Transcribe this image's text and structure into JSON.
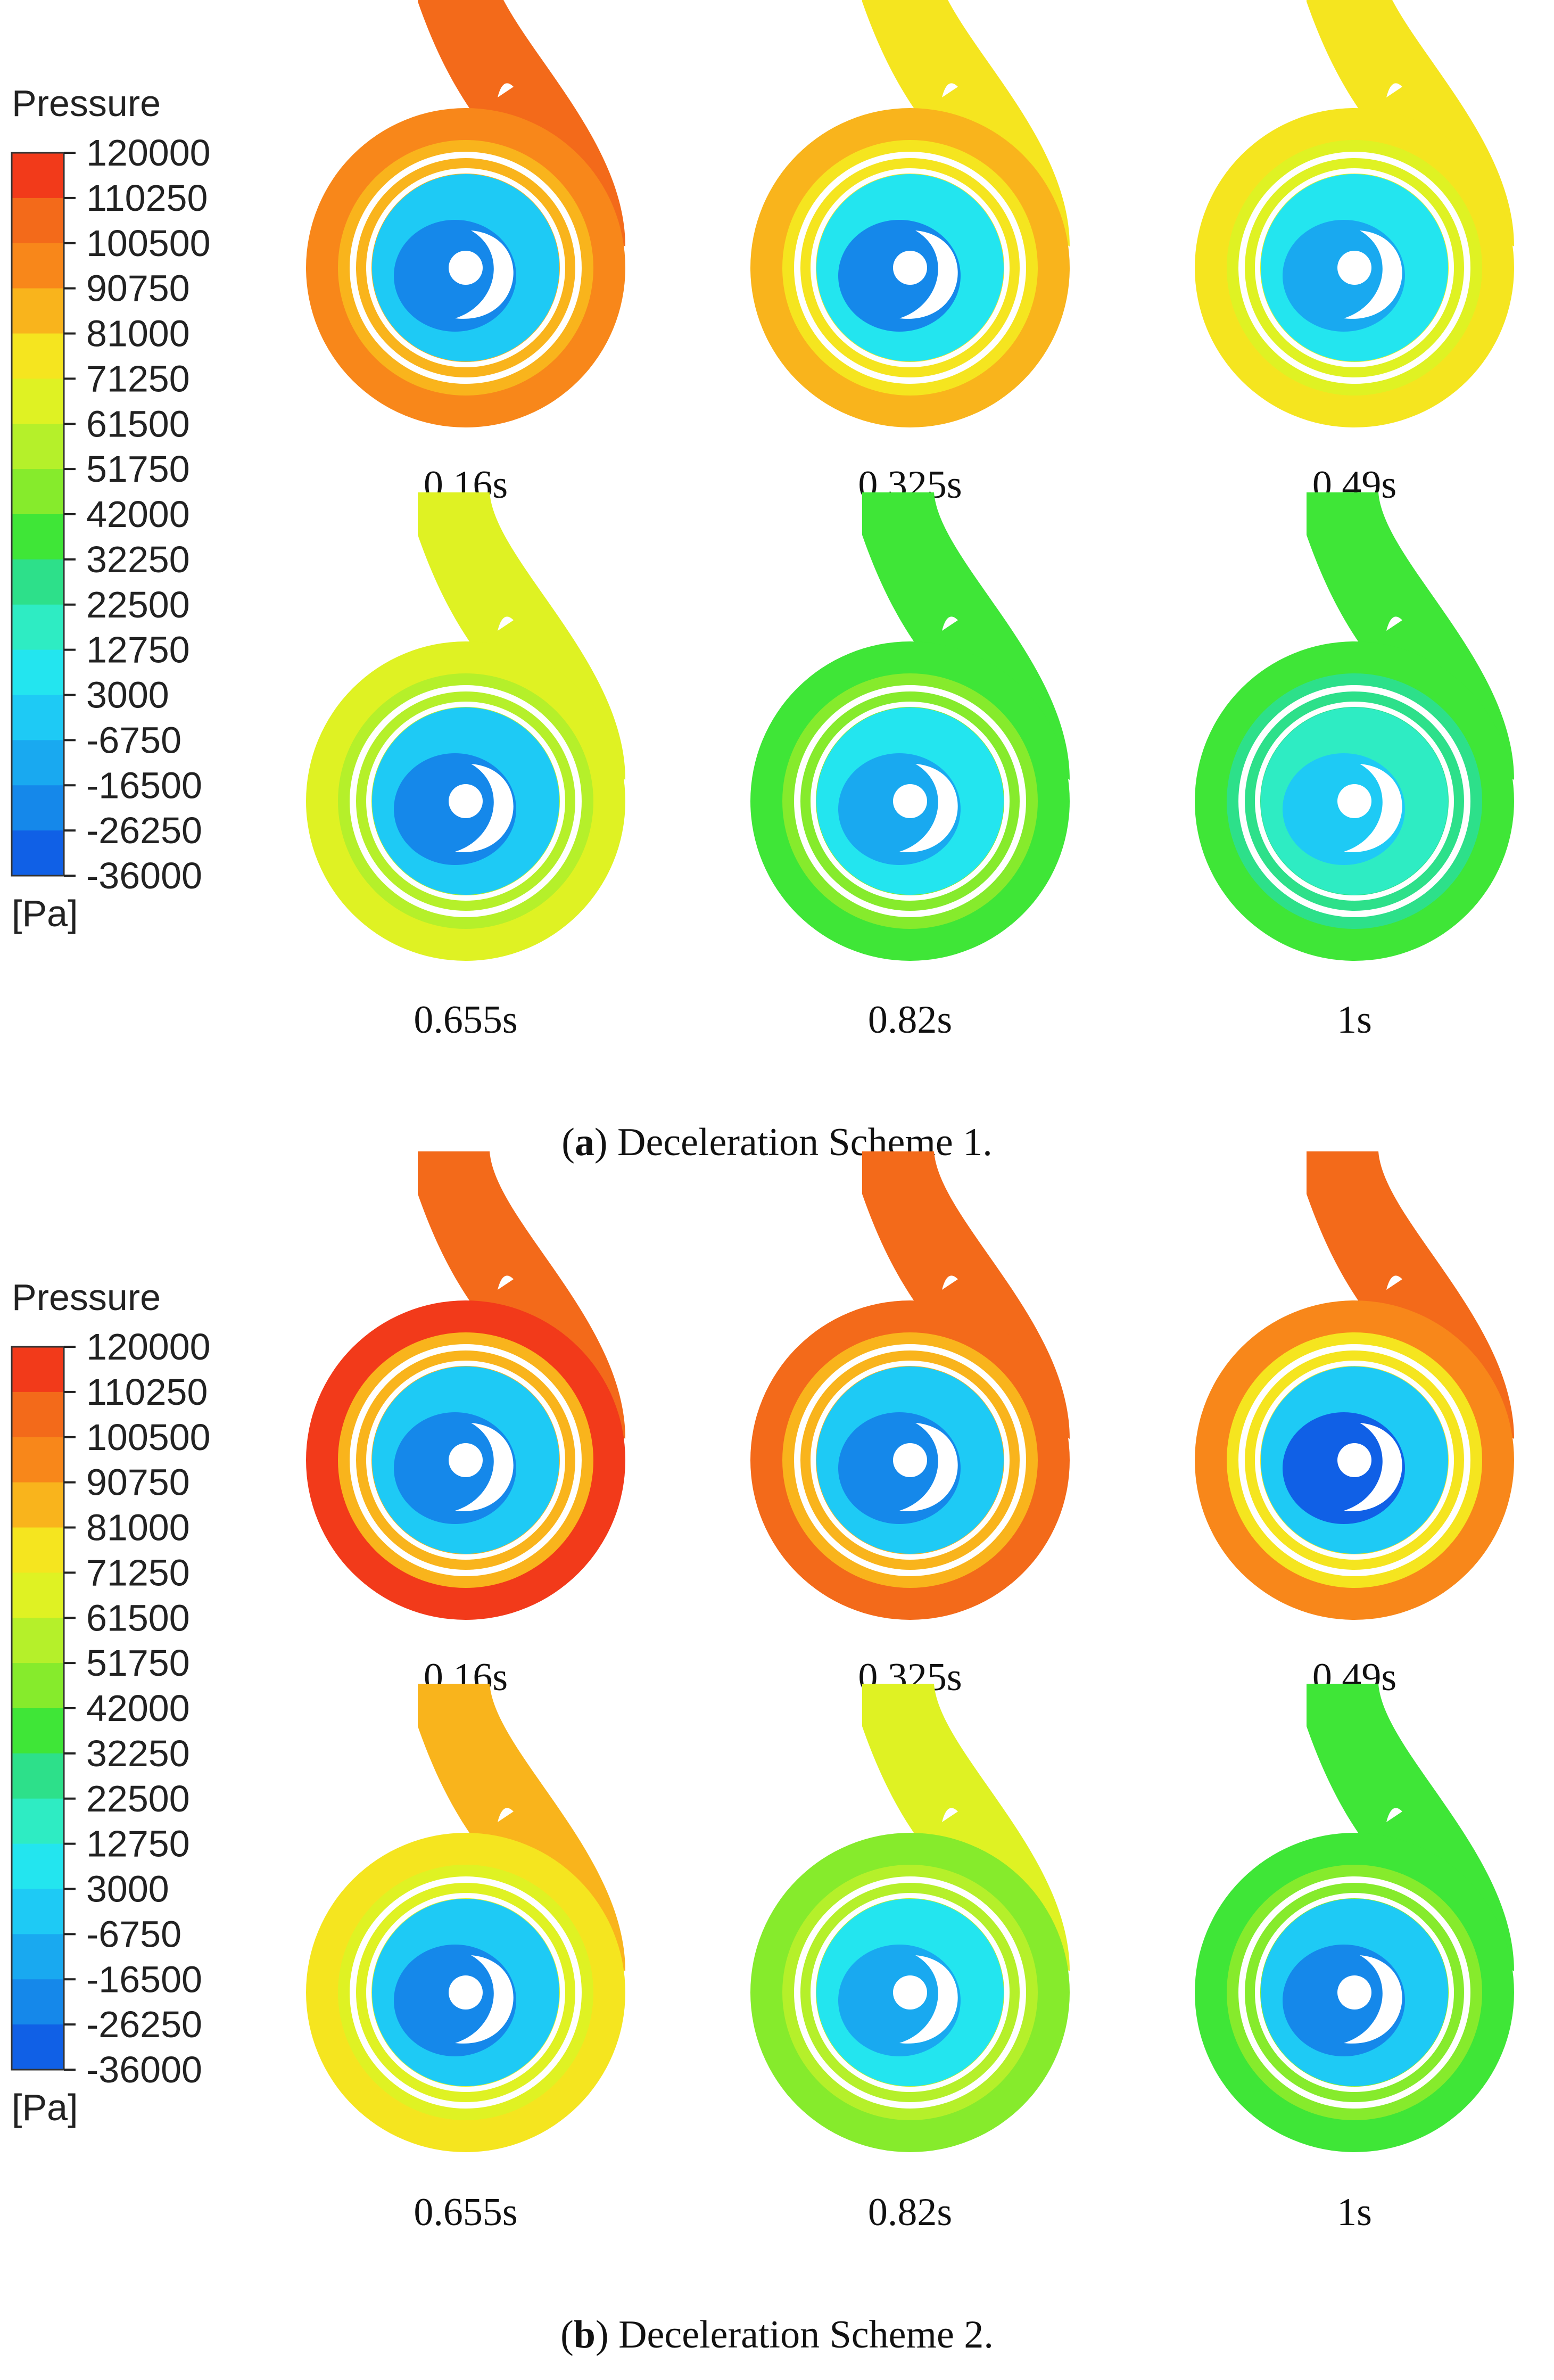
{
  "legend": {
    "title": "Pressure",
    "unit": "[Pa]",
    "levels": [
      "120000",
      "110250",
      "100500",
      "90750",
      "81000",
      "71250",
      "61500",
      "51750",
      "42000",
      "32250",
      "22500",
      "12750",
      "3000",
      "-6750",
      "-16500",
      "-26250",
      "-36000"
    ],
    "colors": [
      "#f23a1a",
      "#f36a1a",
      "#f8871a",
      "#f9b41c",
      "#f5e51f",
      "#dff223",
      "#b5f02a",
      "#86eb2c",
      "#3fe637",
      "#2de08a",
      "#2eecc3",
      "#23e5ef",
      "#1ecaf5",
      "#19a9f0",
      "#1588ea",
      "#1060e6",
      "#0b2ef0"
    ]
  },
  "panels": [
    {
      "caption_label": "a",
      "caption_text": ") Deceleration Scheme 1.",
      "frames": [
        {
          "time": "0.16s",
          "outer": "#f8871a",
          "ring": "#f9b41c",
          "inner": "#1ecaf5",
          "core": "#1588ea",
          "outlet": "#f36a1a"
        },
        {
          "time": "0.325s",
          "outer": "#f9b41c",
          "ring": "#f5e51f",
          "inner": "#23e5ef",
          "core": "#1588ea",
          "outlet": "#f5e51f"
        },
        {
          "time": "0.49s",
          "outer": "#f5e51f",
          "ring": "#dff223",
          "inner": "#23e5ef",
          "core": "#19a9f0",
          "outlet": "#f5e51f"
        },
        {
          "time": "0.655s",
          "outer": "#dff223",
          "ring": "#b5f02a",
          "inner": "#1ecaf5",
          "core": "#1588ea",
          "outlet": "#dff223"
        },
        {
          "time": "0.82s",
          "outer": "#3fe637",
          "ring": "#86eb2c",
          "inner": "#23e5ef",
          "core": "#19a9f0",
          "outlet": "#3fe637"
        },
        {
          "time": "1s",
          "outer": "#3fe637",
          "ring": "#2de08a",
          "inner": "#2eecc3",
          "core": "#1ecaf5",
          "outlet": "#3fe637"
        }
      ]
    },
    {
      "caption_label": "b",
      "caption_text": ") Deceleration Scheme 2.",
      "frames": [
        {
          "time": "0.16s",
          "outer": "#f23a1a",
          "ring": "#f9b41c",
          "inner": "#1ecaf5",
          "core": "#1588ea",
          "outlet": "#f36a1a"
        },
        {
          "time": "0.325s",
          "outer": "#f36a1a",
          "ring": "#f9b41c",
          "inner": "#1ecaf5",
          "core": "#1588ea",
          "outlet": "#f36a1a"
        },
        {
          "time": "0.49s",
          "outer": "#f8871a",
          "ring": "#f5e51f",
          "inner": "#1ecaf5",
          "core": "#1060e6",
          "outlet": "#f36a1a"
        },
        {
          "time": "0.655s",
          "outer": "#f5e51f",
          "ring": "#dff223",
          "inner": "#1ecaf5",
          "core": "#1588ea",
          "outlet": "#f9b41c"
        },
        {
          "time": "0.82s",
          "outer": "#86eb2c",
          "ring": "#b5f02a",
          "inner": "#23e5ef",
          "core": "#19a9f0",
          "outlet": "#dff223"
        },
        {
          "time": "1s",
          "outer": "#3fe637",
          "ring": "#86eb2c",
          "inner": "#1ecaf5",
          "core": "#1588ea",
          "outlet": "#3fe637"
        }
      ]
    }
  ]
}
